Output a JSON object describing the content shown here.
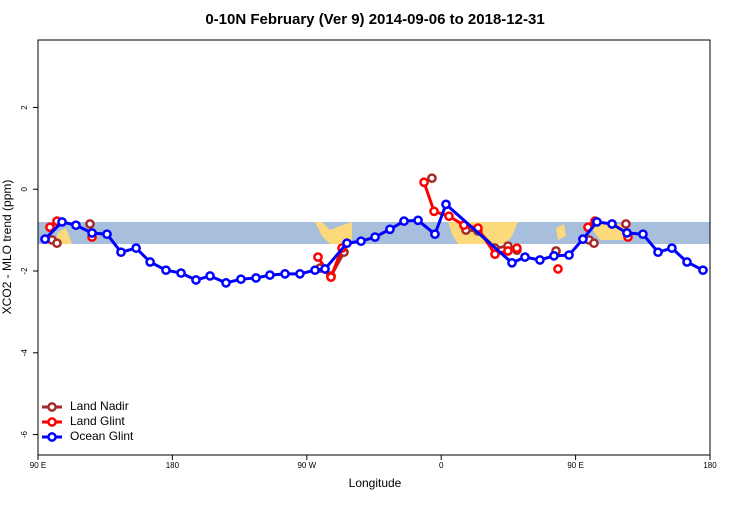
{
  "chart_data": {
    "type": "line",
    "title": "0-10N February (Ver 9)   2014-09-06 to 2018-12-31",
    "xlabel": "Longitude",
    "ylabel": "XCO2 - MLO trend (ppm)",
    "xlim": [
      90,
      540
    ],
    "ylim": [
      -6.5,
      3.65
    ],
    "xticks": [
      {
        "value": 90,
        "label": "90 E"
      },
      {
        "value": 180,
        "label": "180"
      },
      {
        "value": 270,
        "label": "90 W"
      },
      {
        "value": 360,
        "label": "0"
      },
      {
        "value": 450,
        "label": "90 E"
      },
      {
        "value": 540,
        "label": "180"
      }
    ],
    "yticks": [
      2,
      0,
      -2,
      -4,
      -6
    ],
    "legend": "bottom-left",
    "series": [
      {
        "name": "Land Nadir",
        "color": "#a52a2a",
        "x": [
          99.4,
          102.7,
          null,
          124.8,
          null,
          278.8,
          286.2,
          294.9,
          null,
          353.8,
          null,
          376.6,
          384.6,
          396.0,
          404.7,
          410.7,
          null,
          436.9,
          null,
          459.0,
          462.3,
          null,
          483.7
        ],
        "values": [
          -1.24,
          -1.32,
          null,
          -0.85,
          null,
          -1.93,
          -2.12,
          -1.54,
          null,
          0.27,
          null,
          -1.0,
          -1.02,
          -1.44,
          -1.39,
          -1.49,
          null,
          -1.51,
          null,
          -1.24,
          -1.32,
          null,
          -0.85
        ]
      },
      {
        "name": "Land Glint",
        "color": "#ff0000",
        "x": [
          98.0,
          102.7,
          null,
          126.2,
          null,
          277.5,
          286.2,
          293.6,
          null,
          348.5,
          355.2,
          365.2,
          375.2,
          384.6,
          396.0,
          404.7,
          410.7,
          null,
          438.2,
          null,
          458.3,
          463.0,
          null,
          485.1
        ],
        "values": [
          -0.93,
          -0.78,
          null,
          -1.17,
          null,
          -1.66,
          -2.15,
          -1.44,
          null,
          0.17,
          -0.54,
          -0.66,
          -0.88,
          -0.95,
          -1.59,
          -1.51,
          -1.44,
          null,
          -1.95,
          null,
          -0.93,
          -0.78,
          null,
          -1.17
        ]
      },
      {
        "name": "Ocean Glint",
        "color": "#0000ff",
        "x": [
          94.7,
          106.1,
          115.4,
          126.2,
          136.2,
          145.6,
          155.7,
          165.1,
          175.7,
          185.8,
          195.8,
          205.2,
          215.9,
          225.9,
          236.0,
          245.3,
          255.4,
          265.4,
          275.5,
          282.2,
          296.9,
          306.3,
          315.7,
          325.7,
          335.1,
          344.5,
          355.8,
          363.2,
          407.4,
          416.1,
          426.1,
          435.5,
          445.6,
          454.9,
          464.3,
          474.4,
          484.4,
          495.1,
          505.2,
          514.5,
          524.6,
          535.3
        ],
        "values": [
          -1.22,
          -0.8,
          -0.88,
          -1.07,
          -1.1,
          -1.54,
          -1.44,
          -1.78,
          -1.98,
          -2.05,
          -2.22,
          -2.12,
          -2.29,
          -2.2,
          -2.17,
          -2.1,
          -2.07,
          -2.07,
          -1.98,
          -1.95,
          -1.32,
          -1.27,
          -1.17,
          -0.98,
          -0.78,
          -0.76,
          -1.1,
          -0.37,
          -1.8,
          -1.66,
          -1.73,
          -1.63,
          -1.61,
          -1.22,
          -0.8,
          -0.85,
          -1.07,
          -1.1,
          -1.54,
          -1.44,
          -1.78,
          -1.98
        ]
      }
    ]
  }
}
